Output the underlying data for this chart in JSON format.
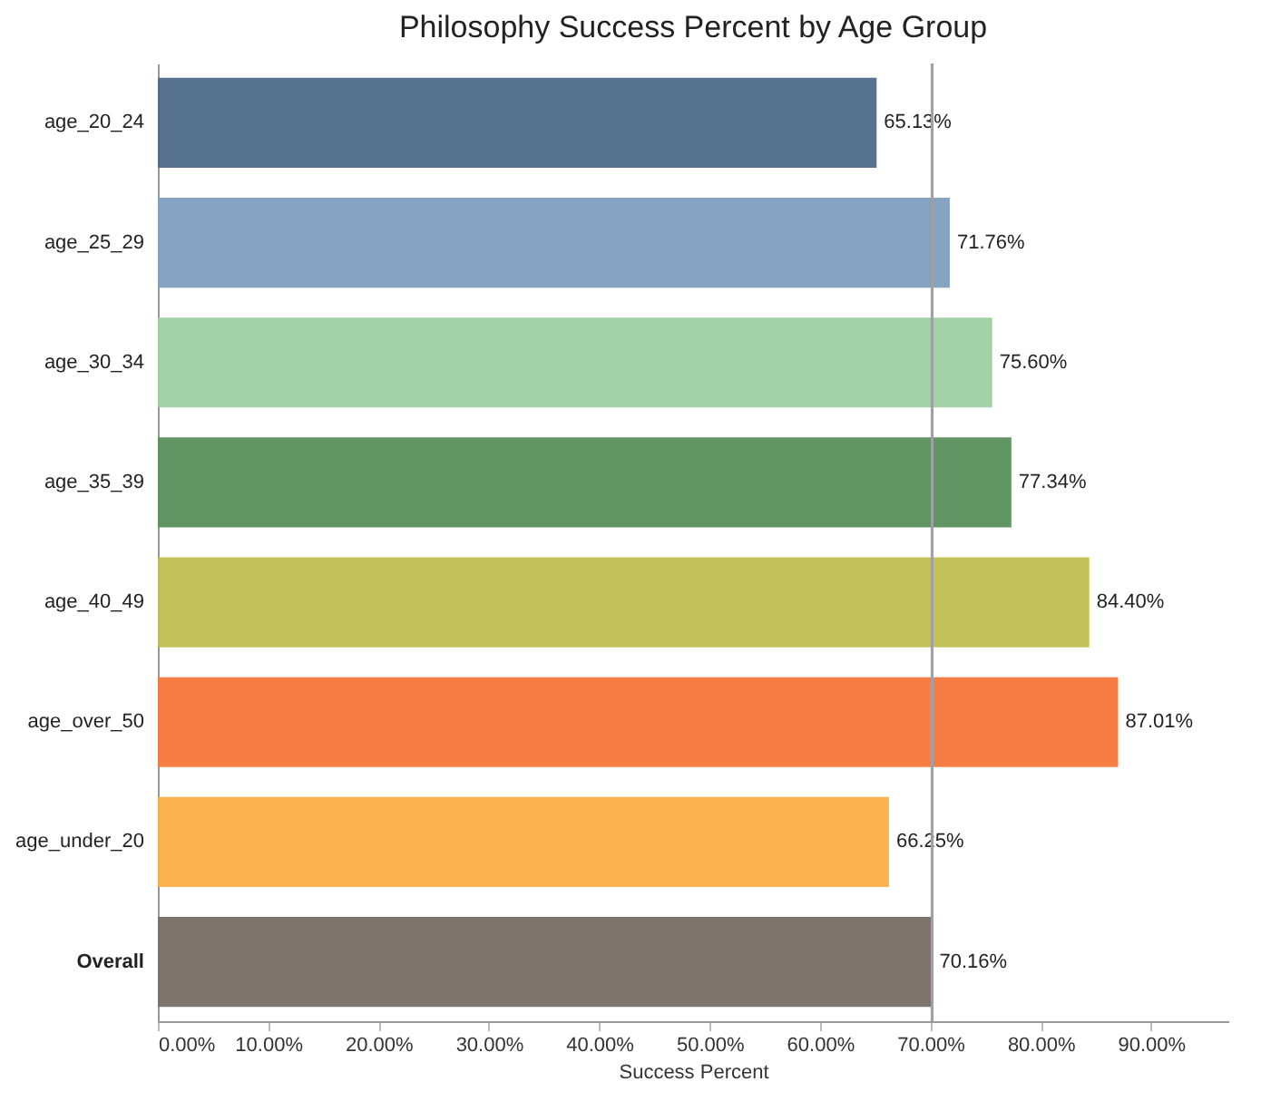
{
  "chart_data": {
    "type": "bar",
    "orientation": "horizontal",
    "title": "Philosophy Success Percent by Age Group",
    "xlabel": "Success Percent",
    "categories": [
      "age_20_24",
      "age_25_29",
      "age_30_34",
      "age_35_39",
      "age_40_49",
      "age_over_50",
      "age_under_20",
      "Overall"
    ],
    "values": [
      65.13,
      71.76,
      75.6,
      77.34,
      84.4,
      87.01,
      66.25,
      70.16
    ],
    "value_labels": [
      "65.13%",
      "71.76%",
      "75.60%",
      "77.34%",
      "84.40%",
      "87.01%",
      "66.25%",
      "70.16%"
    ],
    "colors": [
      "#4e6a88",
      "#7f9ebf",
      "#9ed0a2",
      "#5a8f5c",
      "#bfbf4f",
      "#f5773b",
      "#fcae48",
      "#776d64"
    ],
    "xlim": [
      0,
      97
    ],
    "xticks": [
      {
        "value": 0,
        "label": "0.00%"
      },
      {
        "value": 10,
        "label": "10.00%"
      },
      {
        "value": 20,
        "label": "20.00%"
      },
      {
        "value": 30,
        "label": "30.00%"
      },
      {
        "value": 40,
        "label": "40.00%"
      },
      {
        "value": 50,
        "label": "50.00%"
      },
      {
        "value": 60,
        "label": "60.00%"
      },
      {
        "value": 70,
        "label": "70.00%"
      },
      {
        "value": 80,
        "label": "80.00%"
      },
      {
        "value": 90,
        "label": "90.00%"
      }
    ],
    "ref_lines": [
      {
        "axis": "x",
        "value": 70.16,
        "color": "#a0a0a8"
      }
    ],
    "grid": false,
    "legend": false
  }
}
